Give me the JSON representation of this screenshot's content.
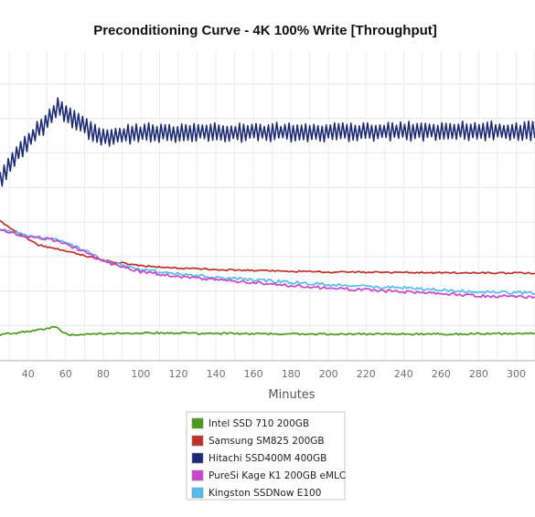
{
  "chart_data": {
    "type": "line",
    "title": "Preconditioning Curve - 4K 100% Write [Throughput]",
    "xlabel": "Minutes",
    "ylabel": "",
    "x_ticks": [
      40,
      60,
      80,
      100,
      120,
      140,
      160,
      180,
      200,
      220,
      240,
      260,
      280,
      300
    ],
    "xlim": [
      25,
      310
    ],
    "ylim": [
      0,
      5
    ],
    "grid": true,
    "legend_position": "bottom-center",
    "series": [
      {
        "name": "Intel SSD 710 200GB",
        "color": "#4c9a1c",
        "points": [
          [
            25,
            0.42
          ],
          [
            40,
            0.47
          ],
          [
            50,
            0.52
          ],
          [
            55,
            0.55
          ],
          [
            58,
            0.46
          ],
          [
            62,
            0.42
          ],
          [
            80,
            0.44
          ],
          [
            100,
            0.45
          ],
          [
            140,
            0.44
          ],
          [
            200,
            0.43
          ],
          [
            260,
            0.43
          ],
          [
            310,
            0.44
          ]
        ]
      },
      {
        "name": "Samsung SM825 200GB",
        "color": "#c0302a",
        "points": [
          [
            25,
            2.25
          ],
          [
            35,
            2.05
          ],
          [
            45,
            1.87
          ],
          [
            60,
            1.77
          ],
          [
            80,
            1.62
          ],
          [
            100,
            1.53
          ],
          [
            120,
            1.49
          ],
          [
            150,
            1.46
          ],
          [
            200,
            1.43
          ],
          [
            250,
            1.42
          ],
          [
            310,
            1.41
          ]
        ]
      },
      {
        "name": "Hitachi SSD400M 400GB",
        "color": "#1c2a78",
        "points": [
          [
            25,
            2.9
          ],
          [
            30,
            3.15
          ],
          [
            40,
            3.55
          ],
          [
            50,
            3.85
          ],
          [
            56,
            4.1
          ],
          [
            60,
            3.95
          ],
          [
            66,
            3.85
          ],
          [
            72,
            3.72
          ],
          [
            78,
            3.6
          ],
          [
            85,
            3.62
          ],
          [
            100,
            3.67
          ],
          [
            140,
            3.68
          ],
          [
            200,
            3.68
          ],
          [
            260,
            3.7
          ],
          [
            310,
            3.7
          ]
        ]
      },
      {
        "name": "PureSi Kage K1 200GB eMLC",
        "color": "#cc44cc",
        "points": [
          [
            25,
            2.1
          ],
          [
            40,
            2.0
          ],
          [
            55,
            1.93
          ],
          [
            70,
            1.76
          ],
          [
            80,
            1.6
          ],
          [
            100,
            1.43
          ],
          [
            130,
            1.33
          ],
          [
            160,
            1.26
          ],
          [
            200,
            1.17
          ],
          [
            240,
            1.11
          ],
          [
            280,
            1.05
          ],
          [
            310,
            1.02
          ]
        ]
      },
      {
        "name": "Kingston SSDNow E100",
        "color": "#55bbee",
        "points": [
          [
            25,
            2.12
          ],
          [
            40,
            2.02
          ],
          [
            55,
            1.95
          ],
          [
            70,
            1.78
          ],
          [
            80,
            1.62
          ],
          [
            100,
            1.46
          ],
          [
            130,
            1.37
          ],
          [
            160,
            1.3
          ],
          [
            200,
            1.23
          ],
          [
            240,
            1.17
          ],
          [
            280,
            1.11
          ],
          [
            310,
            1.09
          ]
        ]
      }
    ]
  }
}
